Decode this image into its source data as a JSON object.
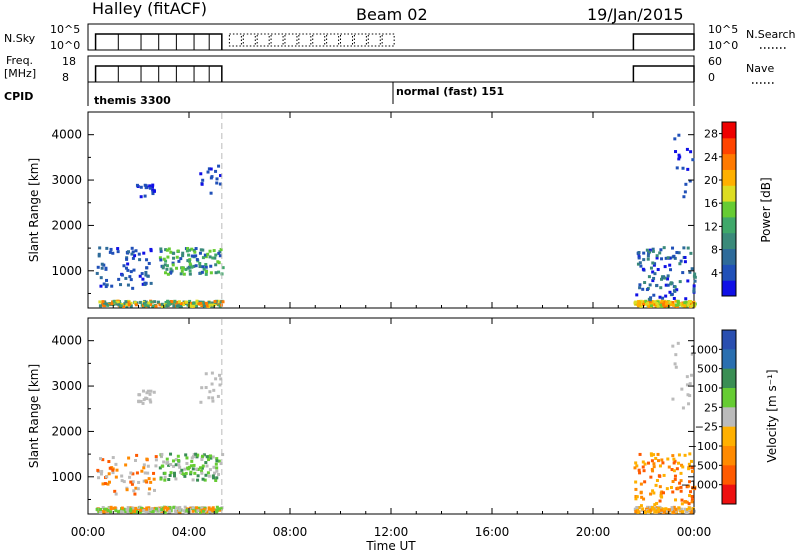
{
  "header": {
    "station": "Halley (fitACF)",
    "beam": "Beam 02",
    "date": "19/Jan/2015"
  },
  "top_panels": {
    "nsky_label": "N.Sky",
    "nsky_ticks": [
      "10^5",
      "10^0"
    ],
    "nsearch_label": "N.Search",
    "freq_label_1": "Freq.",
    "freq_label_2": "[MHz]",
    "freq_ticks": [
      "18",
      "8"
    ],
    "nave_label": "Nave",
    "nave_ticks": [
      "60",
      "0"
    ],
    "cpid_label": "CPID",
    "cpid_1": "themis 3300",
    "cpid_2": "normal (fast) 151"
  },
  "colors": {
    "power": [
      "#1010e6",
      "#2050b8",
      "#2e6b9a",
      "#3a8a7a",
      "#3fa86a",
      "#66cc33",
      "#dddd22",
      "#ffb000",
      "#ff7a00",
      "#ff4400",
      "#ee0000"
    ],
    "velocity": [
      "#2a4fb0",
      "#2a6fb0",
      "#3a8e54",
      "#66cc33",
      "#bbbbbb",
      "#ffb000",
      "#ff8a00",
      "#ff5a00",
      "#ee1010"
    ]
  },
  "chart_data": [
    {
      "type": "heatmap",
      "title": "Power",
      "xlabel": "Time UT",
      "ylabel": "Slant Range [km]",
      "xticks": [
        "00:00",
        "04:00",
        "08:00",
        "12:00",
        "16:00",
        "20:00",
        "00:00"
      ],
      "xlim_hours": [
        0,
        24
      ],
      "yticks": [
        1000,
        2000,
        3000,
        4000
      ],
      "ylim_km": [
        180,
        4500
      ],
      "colorbar_label": "Power [dB]",
      "colorbar_ticks": [
        "4",
        "8",
        "12",
        "16",
        "20",
        "24",
        "28"
      ],
      "colorbar_range": [
        0,
        30
      ],
      "dashed_line_hours": 5.3,
      "data_windows_hours": [
        [
          0.3,
          5.3
        ],
        [
          21.6,
          24
        ]
      ]
    },
    {
      "type": "heatmap",
      "title": "Velocity",
      "xlabel": "Time UT",
      "ylabel": "Slant Range [km]",
      "xticks": [
        "00:00",
        "04:00",
        "08:00",
        "12:00",
        "16:00",
        "20:00",
        "00:00"
      ],
      "xlim_hours": [
        0,
        24
      ],
      "yticks": [
        1000,
        2000,
        3000,
        4000
      ],
      "ylim_km": [
        180,
        4500
      ],
      "colorbar_label": "Velocity [m s⁻¹]",
      "colorbar_ticks": [
        "1000",
        "500",
        "100",
        "25",
        "−25",
        "−100",
        "−500",
        "−1000"
      ],
      "dashed_line_hours": 5.3,
      "data_windows_hours": [
        [
          0.3,
          5.3
        ],
        [
          21.6,
          24
        ]
      ]
    }
  ]
}
